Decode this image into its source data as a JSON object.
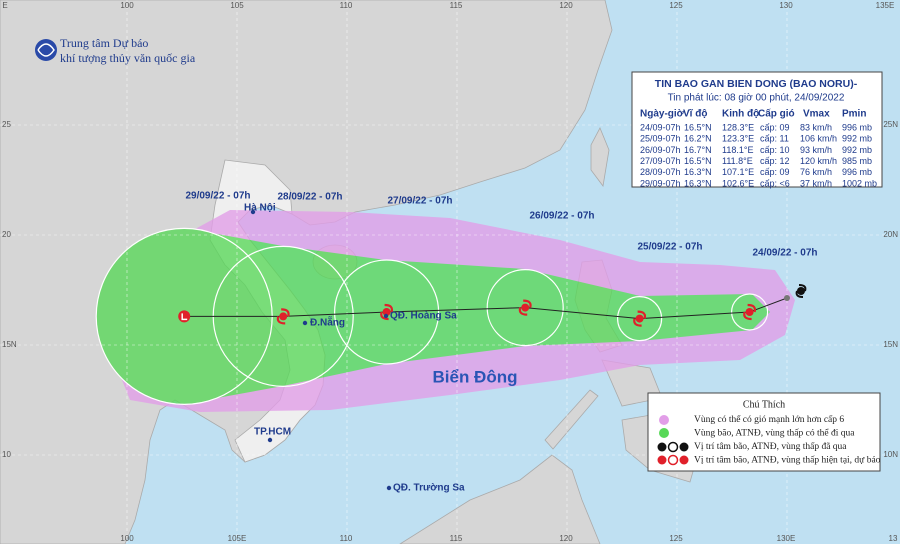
{
  "header": {
    "org": [
      "Trung tâm Dự báo",
      "khí tượng thủy văn quốc gia"
    ]
  },
  "info": {
    "title": "TIN BAO GAN BIEN DONG (BAO NORU)-",
    "issued": "Tin phát lúc: 08 giờ 00 phút, 24/09/2022",
    "columns": [
      "Ngày-giờ",
      "Vĩ độ",
      "Kinh độ",
      "Cấp gió",
      "Vmax",
      "Pmin"
    ],
    "rows": [
      [
        "24/09-07h",
        "16.5°N",
        "128.3°E",
        "cấp: 09",
        "83 km/h",
        "996 mb"
      ],
      [
        "25/09-07h",
        "16.2°N",
        "123.3°E",
        "cấp: 11",
        "106 km/h",
        "992 mb"
      ],
      [
        "26/09-07h",
        "16.7°N",
        "118.1°E",
        "cấp: 10",
        "93 km/h",
        "992 mb"
      ],
      [
        "27/09-07h",
        "16.5°N",
        "111.8°E",
        "cấp: 12",
        "120 km/h",
        "985 mb"
      ],
      [
        "28/09-07h",
        "16.3°N",
        "107.1°E",
        "cấp: 09",
        "76 km/h",
        "996 mb"
      ],
      [
        "29/09-07h",
        "16.3°N",
        "102.6°E",
        "cấp: <6",
        "37 km/h",
        "1002 mb"
      ]
    ]
  },
  "track_labels": [
    "24/09/22 - 07h",
    "25/09/22 - 07h",
    "26/09/22 - 07h",
    "27/09/22 - 07h",
    "28/09/22 - 07h",
    "29/09/22 - 07h"
  ],
  "places": [
    "Hà Nội",
    "Đ.Nẵng",
    "QĐ. Hoàng Sa",
    "TP.HCM",
    "QĐ. Trường Sa"
  ],
  "sea": "Biển Đông",
  "legend": {
    "title": "Chú Thích",
    "items": [
      "Vùng có thể có gió mạnh lớn hơn cấp 6",
      "Vùng bão, ATNĐ, vùng thấp có thể đi qua",
      "Vị trí tâm bão, ATNĐ, vùng thấp đã qua",
      "Vị trí tâm bão, ATNĐ, vùng thấp hiện tại, dự báo"
    ]
  },
  "grid": {
    "top": [
      "E",
      "100",
      "105",
      "110",
      "115",
      "120",
      "125",
      "130",
      "135E"
    ],
    "bottom": [
      "100",
      "105E",
      "110",
      "115",
      "120",
      "125",
      "130E",
      "13"
    ],
    "left": [
      "25",
      "20",
      "15N",
      "10"
    ],
    "right": [
      "25N",
      "20N",
      "15N",
      "10N"
    ]
  }
}
